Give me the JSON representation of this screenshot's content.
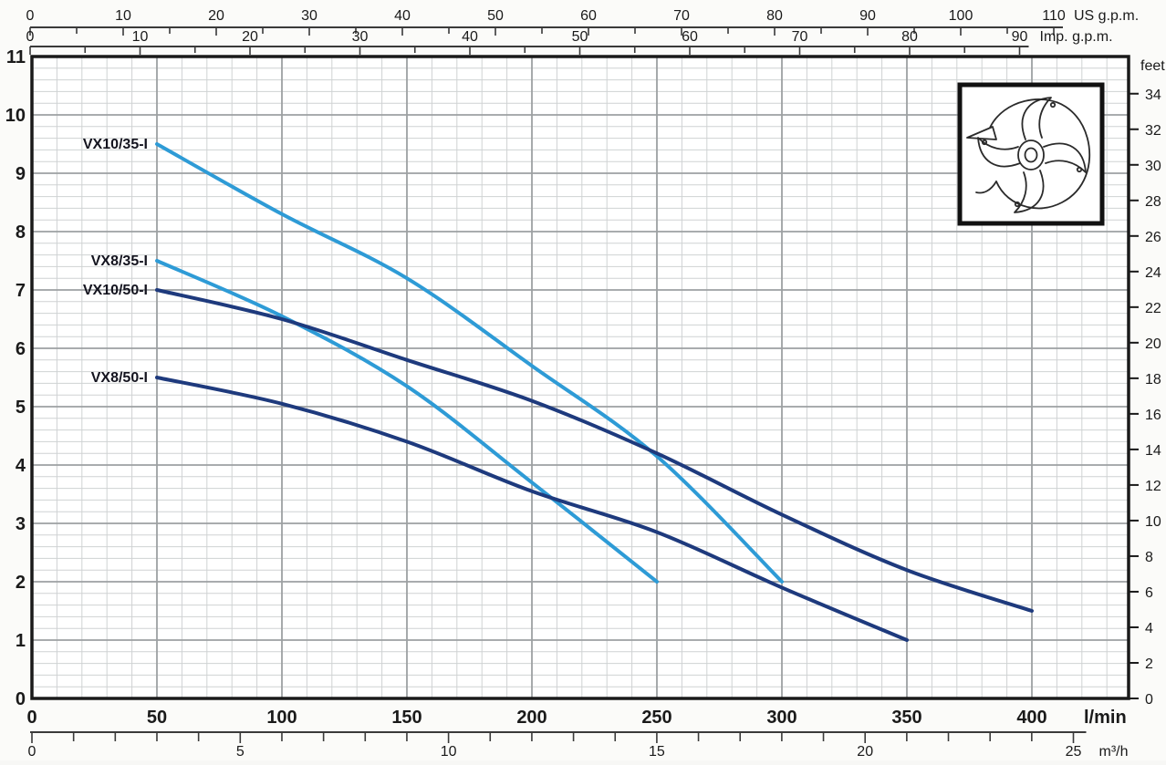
{
  "chart_data": {
    "type": "line",
    "title": "",
    "grid": {
      "minor_color": "#cfd2d3",
      "major_color": "#9da0a2",
      "border_color": "#1a1a1a",
      "background": "#ffffff"
    },
    "axes": {
      "left_m": {
        "label": "",
        "min": 0,
        "max": 11,
        "major_step": 1,
        "minor_step": 0.2,
        "tick_labels": [
          "0",
          "1",
          "2",
          "3",
          "4",
          "5",
          "6",
          "7",
          "8",
          "9",
          "10",
          "11"
        ]
      },
      "right_feet": {
        "label": "feet",
        "min": 0,
        "max": 34,
        "major_step": 2,
        "m_per_unit": 0.3048,
        "tick_labels": [
          "0",
          "2",
          "4",
          "6",
          "8",
          "10",
          "12",
          "14",
          "16",
          "18",
          "20",
          "22",
          "24",
          "26",
          "28",
          "30",
          "32",
          "34"
        ]
      },
      "bottom_lmin": {
        "label": "l/min",
        "min": 0,
        "max": 400,
        "major_step": 50,
        "minor_step": 10,
        "tick_labels": [
          "0",
          "50",
          "100",
          "150",
          "200",
          "250",
          "300",
          "350",
          "400"
        ]
      },
      "bottom_m3h": {
        "label": "m³/h",
        "min": 0,
        "max": 25,
        "major_step": 5,
        "minor_step": 1,
        "lmin_per_unit": 16.6667,
        "tick_labels": [
          "0",
          "5",
          "10",
          "15",
          "20",
          "25"
        ]
      },
      "top_us_gpm": {
        "label": "US g.p.m.",
        "min": 0,
        "max": 110,
        "major_step": 10,
        "minor_step": 5,
        "lmin_per_unit": 3.785,
        "tick_labels": [
          "0",
          "10",
          "20",
          "30",
          "40",
          "50",
          "60",
          "70",
          "80",
          "90",
          "100",
          "110"
        ]
      },
      "top_imp_gpm": {
        "label": "Imp. g.p.m.",
        "min": 0,
        "max": 90,
        "major_step": 10,
        "minor_step": 5,
        "lmin_per_unit": 4.546,
        "tick_labels": [
          "0",
          "10",
          "20",
          "30",
          "40",
          "50",
          "60",
          "70",
          "80",
          "90"
        ]
      }
    },
    "series": [
      {
        "name": "VX10/35-I",
        "color": "#2E9BD6",
        "points": [
          [
            50,
            9.5
          ],
          [
            100,
            8.3
          ],
          [
            150,
            7.2
          ],
          [
            200,
            5.7
          ],
          [
            250,
            4.15
          ],
          [
            300,
            2.0
          ]
        ]
      },
      {
        "name": "VX8/35-I",
        "color": "#2E9BD6",
        "points": [
          [
            50,
            7.5
          ],
          [
            100,
            6.55
          ],
          [
            150,
            5.35
          ],
          [
            200,
            3.7
          ],
          [
            250,
            2.0
          ]
        ]
      },
      {
        "name": "VX10/50-I",
        "color": "#1E3A7D",
        "points": [
          [
            50,
            7.0
          ],
          [
            100,
            6.5
          ],
          [
            150,
            5.8
          ],
          [
            200,
            5.1
          ],
          [
            250,
            4.2
          ],
          [
            300,
            3.15
          ],
          [
            350,
            2.2
          ],
          [
            400,
            1.5
          ]
        ]
      },
      {
        "name": "VX8/50-I",
        "color": "#1E3A7D",
        "points": [
          [
            50,
            5.5
          ],
          [
            100,
            5.05
          ],
          [
            150,
            4.4
          ],
          [
            200,
            3.55
          ],
          [
            250,
            2.85
          ],
          [
            300,
            1.9
          ],
          [
            350,
            1.0
          ]
        ]
      }
    ],
    "inset": {
      "name": "vortex impeller drawing"
    },
    "ylim": [
      0,
      11
    ],
    "xlim_lmin": [
      0,
      440
    ],
    "legend_position": "inline-left-of-curves"
  }
}
